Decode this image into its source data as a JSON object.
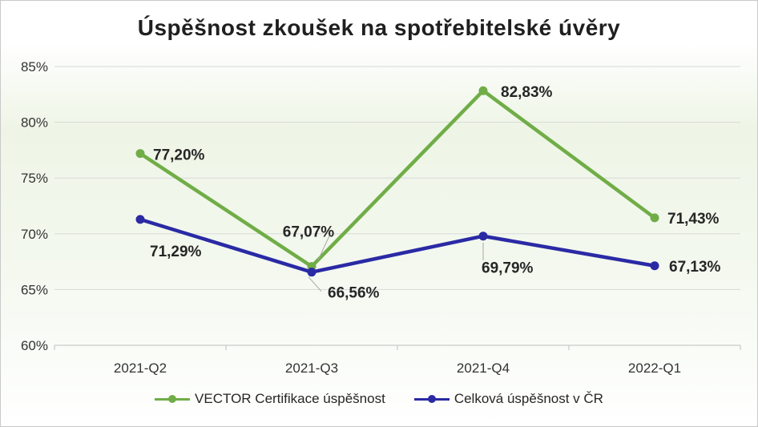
{
  "chart_data": {
    "type": "line",
    "title": "Úspěšnost zkoušek na spotřebitelské úvěry",
    "categories": [
      "2021-Q2",
      "2021-Q3",
      "2021-Q4",
      "2022-Q1"
    ],
    "ylim": [
      60,
      85
    ],
    "yticks": [
      "60%",
      "65%",
      "70%",
      "75%",
      "80%",
      "85%"
    ],
    "grid": true,
    "legend_position": "bottom",
    "series": [
      {
        "name": "VECTOR Certifikace úspěšnost",
        "color": "#70ad47",
        "values": [
          77.2,
          67.07,
          82.83,
          71.43
        ],
        "labels": [
          "77,20%",
          "67,07%",
          "82,83%",
          "71,43%"
        ]
      },
      {
        "name": "Celková úspěšnost v ČR",
        "color": "#2a2aa5",
        "values": [
          71.29,
          66.56,
          69.79,
          67.13
        ],
        "labels": [
          "71,29%",
          "66,56%",
          "69,79%",
          "67,13%"
        ]
      }
    ]
  }
}
